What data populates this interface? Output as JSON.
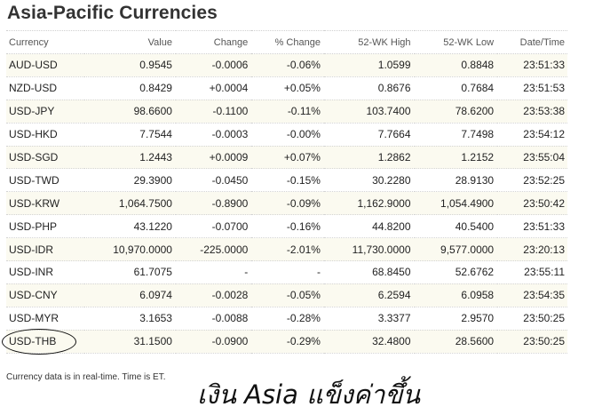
{
  "page": {
    "title": "Asia-Pacific Currencies"
  },
  "table": {
    "columns": [
      "Currency",
      "Value",
      "Change",
      "% Change",
      "52-WK High",
      "52-WK Low",
      "Date/Time"
    ],
    "rows": [
      {
        "symbol": "AUD-USD",
        "value": "0.9545",
        "change": "-0.0006",
        "pct": "-0.06%",
        "high": "1.0599",
        "low": "0.8848",
        "time": "23:51:33",
        "trend": "neg"
      },
      {
        "symbol": "NZD-USD",
        "value": "0.8429",
        "change": "+0.0004",
        "pct": "+0.05%",
        "high": "0.8676",
        "low": "0.7684",
        "time": "23:51:53",
        "trend": "pos"
      },
      {
        "symbol": "USD-JPY",
        "value": "98.6600",
        "change": "-0.1100",
        "pct": "-0.11%",
        "high": "103.7400",
        "low": "78.6200",
        "time": "23:53:38",
        "trend": "neg"
      },
      {
        "symbol": "USD-HKD",
        "value": "7.7544",
        "change": "-0.0003",
        "pct": "-0.00%",
        "high": "7.7664",
        "low": "7.7498",
        "time": "23:54:12",
        "trend": "neg"
      },
      {
        "symbol": "USD-SGD",
        "value": "1.2443",
        "change": "+0.0009",
        "pct": "+0.07%",
        "high": "1.2862",
        "low": "1.2152",
        "time": "23:55:04",
        "trend": "pos"
      },
      {
        "symbol": "USD-TWD",
        "value": "29.3900",
        "change": "-0.0450",
        "pct": "-0.15%",
        "high": "30.2280",
        "low": "28.9130",
        "time": "23:52:25",
        "trend": "neg"
      },
      {
        "symbol": "USD-KRW",
        "value": "1,064.7500",
        "change": "-0.8900",
        "pct": "-0.09%",
        "high": "1,162.9000",
        "low": "1,054.4900",
        "time": "23:50:42",
        "trend": "neg"
      },
      {
        "symbol": "USD-PHP",
        "value": "43.1220",
        "change": "-0.0700",
        "pct": "-0.16%",
        "high": "44.8200",
        "low": "40.5400",
        "time": "23:51:33",
        "trend": "neg"
      },
      {
        "symbol": "USD-IDR",
        "value": "10,970.0000",
        "change": "-225.0000",
        "pct": "-2.01%",
        "high": "11,730.0000",
        "low": "9,577.0000",
        "time": "23:20:13",
        "trend": "neg"
      },
      {
        "symbol": "USD-INR",
        "value": "61.7075",
        "change": "-",
        "pct": "-",
        "high": "68.8450",
        "low": "52.6762",
        "time": "23:55:11",
        "trend": "none"
      },
      {
        "symbol": "USD-CNY",
        "value": "6.0974",
        "change": "-0.0028",
        "pct": "-0.05%",
        "high": "6.2594",
        "low": "6.0958",
        "time": "23:54:35",
        "trend": "neg"
      },
      {
        "symbol": "USD-MYR",
        "value": "3.1653",
        "change": "-0.0088",
        "pct": "-0.28%",
        "high": "3.3377",
        "low": "2.9570",
        "time": "23:50:25",
        "trend": "neg"
      },
      {
        "symbol": "USD-THB",
        "value": "31.1500",
        "change": "-0.0900",
        "pct": "-0.29%",
        "high": "32.4800",
        "low": "28.5600",
        "time": "23:50:25",
        "trend": "neg"
      }
    ]
  },
  "footer": {
    "note": "Currency data is in real-time. Time is ET."
  },
  "caption": {
    "text": "เงิน Asia แข็งค่าขึ้น"
  },
  "colors": {
    "symbol_link": "#1f4f9c",
    "negative": "#b30000",
    "positive": "#0b7a0b",
    "row_shade": "#fbfaf0"
  }
}
